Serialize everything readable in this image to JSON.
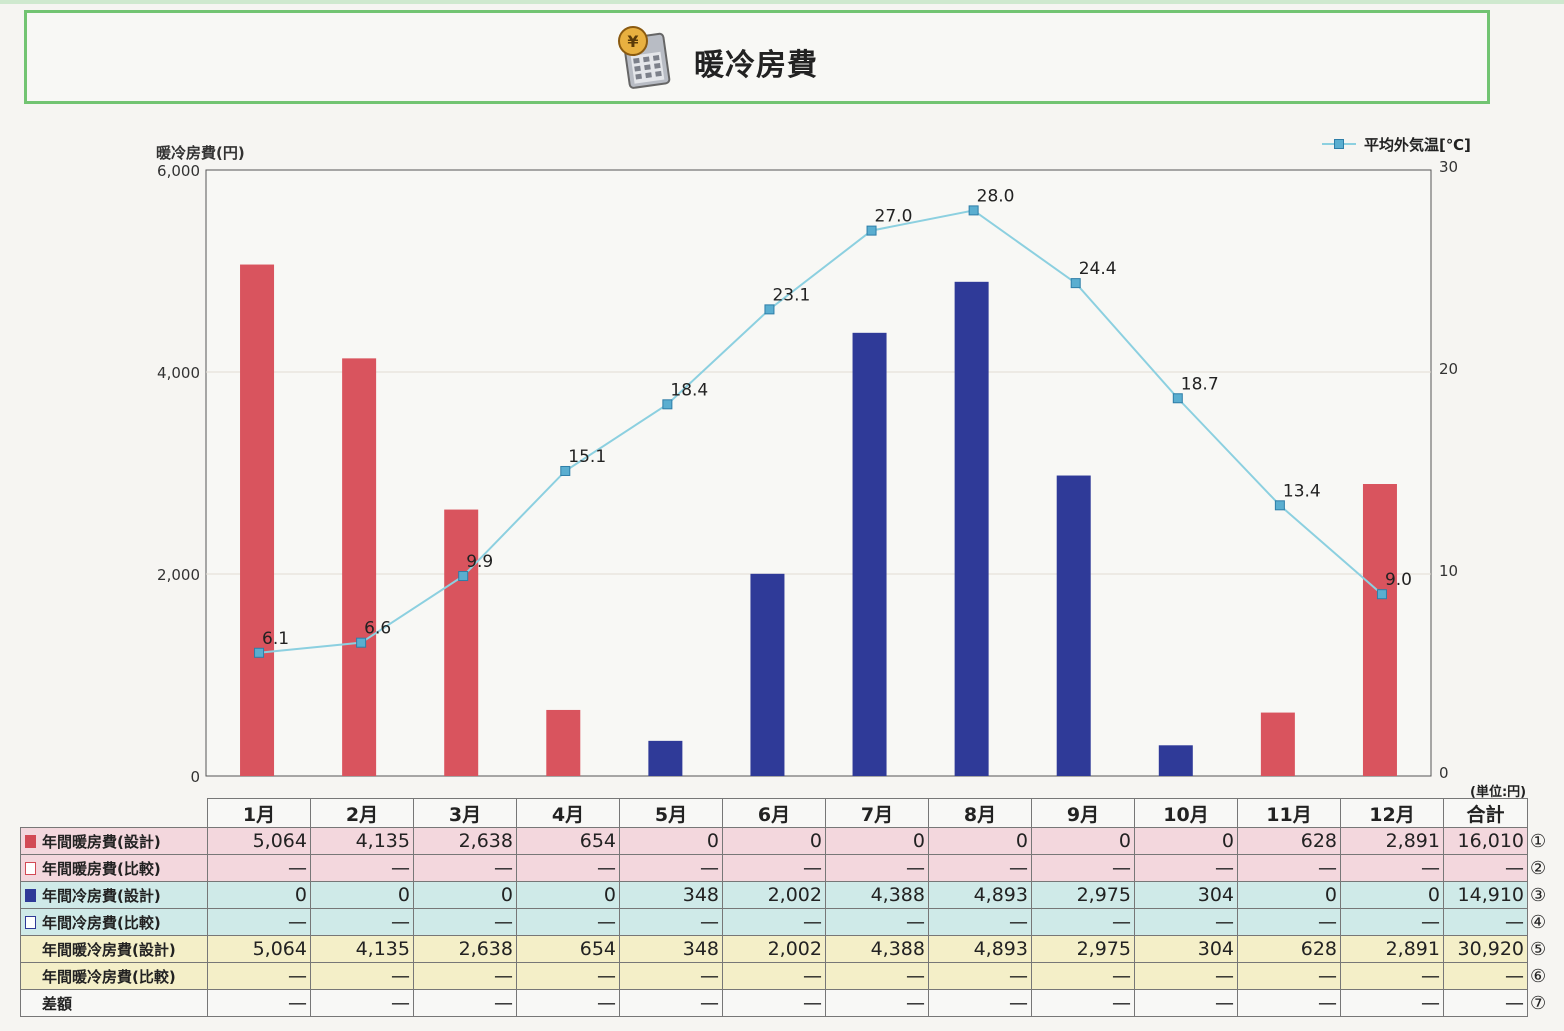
{
  "header": {
    "title": "暖冷房費",
    "icon": "yen-calculator-icon"
  },
  "chart_data": {
    "type": "bar+line",
    "categories": [
      "1月",
      "2月",
      "3月",
      "4月",
      "5月",
      "6月",
      "7月",
      "8月",
      "9月",
      "10月",
      "11月",
      "12月"
    ],
    "series": [
      {
        "axis": "left",
        "type": "bar",
        "color": "#d9545e",
        "values": [
          5064,
          4135,
          2638,
          654,
          0,
          0,
          0,
          0,
          0,
          0,
          628,
          2891
        ]
      },
      {
        "axis": "left",
        "type": "bar",
        "color": "#2f3a98",
        "values": [
          0,
          0,
          0,
          0,
          348,
          2002,
          4388,
          4893,
          2975,
          304,
          0,
          0
        ]
      },
      {
        "name": "平均外気温[℃]",
        "axis": "right",
        "type": "line",
        "color": "#8cd0e0",
        "values": [
          6.1,
          6.6,
          9.9,
          15.1,
          18.4,
          23.1,
          27.0,
          28.0,
          24.4,
          18.7,
          13.4,
          9.0
        ],
        "labels": [
          "6.1",
          "6.6",
          "9.9",
          "15.1",
          "18.4",
          "23.1",
          "27.0",
          "28.0",
          "24.4",
          "18.7",
          "13.4",
          "9.0"
        ]
      }
    ],
    "ylabel": "暖冷房費(円)",
    "ylim": [
      0,
      6000
    ],
    "yticks": [
      "0",
      "2,000",
      "4,000",
      "6,000"
    ],
    "y2lim": [
      0,
      30
    ],
    "y2ticks": [
      "0",
      "10",
      "20",
      "30"
    ],
    "legend_position": "top-right",
    "grid": true
  },
  "table": {
    "unit": "(単位:円)",
    "headers": [
      "1月",
      "2月",
      "3月",
      "4月",
      "5月",
      "6月",
      "7月",
      "8月",
      "9月",
      "10月",
      "11月",
      "12月",
      "合計"
    ],
    "rows": [
      {
        "label": "年間暖房費(設計)",
        "group": "heat",
        "square": "filled-red",
        "values": [
          "5,064",
          "4,135",
          "2,638",
          "654",
          "0",
          "0",
          "0",
          "0",
          "0",
          "0",
          "628",
          "2,891",
          "16,010"
        ],
        "mark": "①"
      },
      {
        "label": "年間暖房費(比較)",
        "group": "heat",
        "square": "outline-red",
        "values": [
          "—",
          "—",
          "—",
          "—",
          "—",
          "—",
          "—",
          "—",
          "—",
          "—",
          "—",
          "—",
          "—"
        ],
        "mark": "②"
      },
      {
        "label": "年間冷房費(設計)",
        "group": "cool",
        "square": "filled-blue",
        "values": [
          "0",
          "0",
          "0",
          "0",
          "348",
          "2,002",
          "4,388",
          "4,893",
          "2,975",
          "304",
          "0",
          "0",
          "14,910"
        ],
        "mark": "③"
      },
      {
        "label": "年間冷房費(比較)",
        "group": "cool",
        "square": "outline-blue",
        "values": [
          "—",
          "—",
          "—",
          "—",
          "—",
          "—",
          "—",
          "—",
          "—",
          "—",
          "—",
          "—",
          "—"
        ],
        "mark": "④"
      },
      {
        "label": "年間暖冷房費(設計)",
        "group": "tot",
        "square": "",
        "values": [
          "5,064",
          "4,135",
          "2,638",
          "654",
          "348",
          "2,002",
          "4,388",
          "4,893",
          "2,975",
          "304",
          "628",
          "2,891",
          "30,920"
        ],
        "mark": "⑤"
      },
      {
        "label": "年間暖冷房費(比較)",
        "group": "tot",
        "square": "",
        "values": [
          "—",
          "—",
          "—",
          "—",
          "—",
          "—",
          "—",
          "—",
          "—",
          "—",
          "—",
          "—",
          "—"
        ],
        "mark": "⑥"
      },
      {
        "label": "差額",
        "group": "diff",
        "square": "",
        "values": [
          "—",
          "—",
          "—",
          "—",
          "—",
          "—",
          "—",
          "—",
          "—",
          "—",
          "—",
          "—",
          "—"
        ],
        "mark": "⑦"
      }
    ]
  }
}
